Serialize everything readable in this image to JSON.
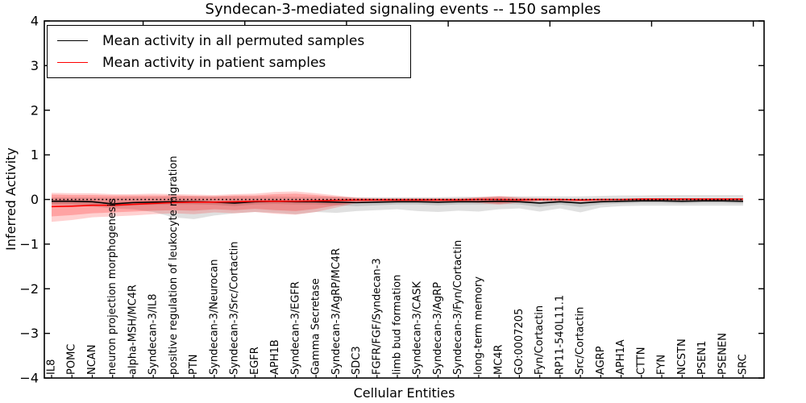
{
  "title": "Syndecan-3-mediated signaling events -- 150 samples",
  "axes": {
    "x_label": "Cellular Entities",
    "y_label": "Inferred Activity",
    "y_tick_labels": [
      "4",
      "3",
      "2",
      "1",
      "0",
      "−1",
      "−2",
      "−3",
      "−4"
    ],
    "y_range": [
      -4,
      4
    ]
  },
  "legend": {
    "items": [
      {
        "label": "Mean activity in all permuted samples",
        "color": "#000000"
      },
      {
        "label": "Mean activity in patient samples",
        "color": "#ff0000"
      }
    ]
  },
  "chart_data": {
    "type": "line",
    "title": "Syndecan-3-mediated signaling events -- 150 samples",
    "xlabel": "Cellular Entities",
    "ylabel": "Inferred Activity",
    "ylim": [
      -4,
      4
    ],
    "grid": false,
    "legend_position": "upper left",
    "zero_reference_line": 0,
    "top_axis_ticks": [
      5,
      10,
      15,
      20,
      25,
      30,
      35
    ],
    "categories": [
      "IL8",
      "POMC",
      "NCAN",
      "neuron projection morphogenesis",
      "alpha-MSH/MC4R",
      "Syndecan-3/IL8",
      "positive regulation of leukocyte migration",
      "PTN",
      "Syndecan-3/Neurocan",
      "Syndecan-3/Src/Cortactin",
      "EGFR",
      "APH1B",
      "Syndecan-3/EGFR",
      "Gamma Secretase",
      "Syndecan-3/AgRP/MC4R",
      "SDC3",
      "FGFR/FGF/Syndecan-3",
      "limb bud formation",
      "Syndecan-3/CASK",
      "Syndecan-3/AgRP",
      "Syndecan-3/Fyn/Cortactin",
      "long-term memory",
      "MC4R",
      "GO:0007205",
      "Fyn/Cortactin",
      "RP11-540L11.1",
      "Src/Cortactin",
      "AGRP",
      "APH1A",
      "CTTN",
      "FYN",
      "NCSTN",
      "PSEN1",
      "PSENEN",
      "SRC"
    ],
    "series": [
      {
        "name": "Mean activity in all permuted samples",
        "color": "#000000",
        "style": "solid",
        "values": [
          -0.04,
          -0.04,
          -0.05,
          -0.1,
          -0.07,
          -0.06,
          -0.05,
          -0.05,
          -0.06,
          -0.08,
          -0.05,
          -0.04,
          -0.05,
          -0.05,
          -0.06,
          -0.07,
          -0.06,
          -0.05,
          -0.05,
          -0.06,
          -0.05,
          -0.05,
          -0.04,
          -0.05,
          -0.08,
          -0.05,
          -0.08,
          -0.05,
          -0.04,
          -0.03,
          -0.03,
          -0.04,
          -0.03,
          -0.03,
          -0.04
        ]
      },
      {
        "name": "Mean activity in patient samples",
        "color": "#ff0000",
        "style": "solid",
        "values": [
          -0.16,
          -0.15,
          -0.13,
          -0.13,
          -0.11,
          -0.09,
          -0.07,
          -0.06,
          -0.06,
          -0.05,
          -0.04,
          -0.04,
          -0.04,
          -0.03,
          -0.02,
          -0.01,
          -0.01,
          -0.01,
          -0.01,
          -0.01,
          -0.01,
          0.0,
          0.0,
          -0.01,
          0.0,
          0.0,
          -0.01,
          0.0,
          0.0,
          0.01,
          0.01,
          0.01,
          0.01,
          0.01,
          0.01
        ]
      },
      {
        "name": "zero reference",
        "color": "#000000",
        "style": "dotted",
        "values": [
          0,
          0,
          0,
          0,
          0,
          0,
          0,
          0,
          0,
          0,
          0,
          0,
          0,
          0,
          0,
          0,
          0,
          0,
          0,
          0,
          0,
          0,
          0,
          0,
          0,
          0,
          0,
          0,
          0,
          0,
          0,
          0,
          0,
          0,
          0
        ]
      }
    ],
    "bands": [
      {
        "name": "permuted-samples-range-outer",
        "color": "rgba(0,0,0,0.12)",
        "upper": [
          0.05,
          0.05,
          0.05,
          0.05,
          0.06,
          0.06,
          0.07,
          0.07,
          0.07,
          0.07,
          0.07,
          0.07,
          0.06,
          0.06,
          0.06,
          0.05,
          0.05,
          0.05,
          0.05,
          0.05,
          0.06,
          0.06,
          0.07,
          0.07,
          0.07,
          0.07,
          0.07,
          0.08,
          0.09,
          0.09,
          0.1,
          0.1,
          0.1,
          0.1,
          0.1
        ],
        "lower": [
          -0.12,
          -0.13,
          -0.16,
          -0.2,
          -0.22,
          -0.28,
          -0.4,
          -0.44,
          -0.36,
          -0.31,
          -0.28,
          -0.3,
          -0.33,
          -0.28,
          -0.3,
          -0.26,
          -0.24,
          -0.22,
          -0.26,
          -0.28,
          -0.25,
          -0.27,
          -0.22,
          -0.2,
          -0.27,
          -0.2,
          -0.29,
          -0.18,
          -0.15,
          -0.14,
          -0.14,
          -0.14,
          -0.14,
          -0.14,
          -0.14
        ]
      },
      {
        "name": "permuted-samples-range-inner",
        "color": "rgba(0,0,0,0.13)",
        "upper": [
          -0.01,
          -0.01,
          -0.02,
          -0.06,
          -0.04,
          -0.03,
          -0.02,
          -0.02,
          -0.03,
          -0.05,
          -0.02,
          -0.01,
          -0.02,
          -0.02,
          -0.03,
          -0.04,
          -0.03,
          -0.02,
          -0.02,
          -0.03,
          -0.02,
          -0.02,
          -0.01,
          -0.02,
          -0.04,
          -0.02,
          -0.04,
          -0.02,
          -0.01,
          0.0,
          0.0,
          -0.01,
          0.0,
          0.0,
          -0.01
        ],
        "lower": [
          -0.1,
          -0.1,
          -0.12,
          -0.17,
          -0.13,
          -0.12,
          -0.11,
          -0.11,
          -0.12,
          -0.15,
          -0.11,
          -0.1,
          -0.11,
          -0.11,
          -0.13,
          -0.15,
          -0.13,
          -0.11,
          -0.11,
          -0.13,
          -0.11,
          -0.11,
          -0.1,
          -0.11,
          -0.17,
          -0.11,
          -0.17,
          -0.11,
          -0.09,
          -0.08,
          -0.08,
          -0.09,
          -0.08,
          -0.08,
          -0.09
        ]
      },
      {
        "name": "patient-samples-range-outer",
        "color": "rgba(255,0,0,0.18)",
        "upper": [
          0.15,
          0.14,
          0.14,
          0.12,
          0.12,
          0.13,
          0.12,
          0.11,
          0.1,
          0.12,
          0.13,
          0.17,
          0.18,
          0.14,
          0.09,
          0.04,
          0.03,
          0.03,
          0.03,
          0.03,
          0.03,
          0.05,
          0.08,
          0.05,
          0.03,
          0.02,
          0.02,
          0.02,
          0.02,
          0.02,
          0.02,
          0.02,
          0.02,
          0.02,
          0.02
        ],
        "lower": [
          -0.5,
          -0.46,
          -0.4,
          -0.38,
          -0.36,
          -0.33,
          -0.31,
          -0.33,
          -0.29,
          -0.31,
          -0.28,
          -0.32,
          -0.34,
          -0.28,
          -0.18,
          -0.08,
          -0.06,
          -0.05,
          -0.05,
          -0.05,
          -0.05,
          -0.08,
          -0.12,
          -0.07,
          -0.04,
          -0.04,
          -0.05,
          -0.04,
          -0.03,
          -0.03,
          -0.03,
          -0.03,
          -0.03,
          -0.03,
          -0.03
        ]
      },
      {
        "name": "patient-samples-range-inner",
        "color": "rgba(255,0,0,0.22)",
        "upper": [
          0.11,
          0.1,
          0.1,
          0.09,
          0.09,
          0.09,
          0.09,
          0.08,
          0.07,
          0.09,
          0.09,
          0.12,
          0.13,
          0.1,
          0.06,
          0.03,
          0.02,
          0.02,
          0.02,
          0.02,
          0.02,
          0.04,
          0.06,
          0.03,
          0.02,
          0.01,
          0.01,
          0.01,
          0.01,
          0.01,
          0.01,
          0.01,
          0.01,
          0.01,
          0.01
        ],
        "lower": [
          -0.38,
          -0.35,
          -0.31,
          -0.29,
          -0.27,
          -0.25,
          -0.24,
          -0.25,
          -0.22,
          -0.24,
          -0.21,
          -0.24,
          -0.26,
          -0.21,
          -0.13,
          -0.06,
          -0.04,
          -0.04,
          -0.04,
          -0.04,
          -0.04,
          -0.06,
          -0.09,
          -0.05,
          -0.03,
          -0.03,
          -0.04,
          -0.03,
          -0.02,
          -0.02,
          -0.02,
          -0.02,
          -0.02,
          -0.02,
          -0.02
        ]
      }
    ]
  }
}
